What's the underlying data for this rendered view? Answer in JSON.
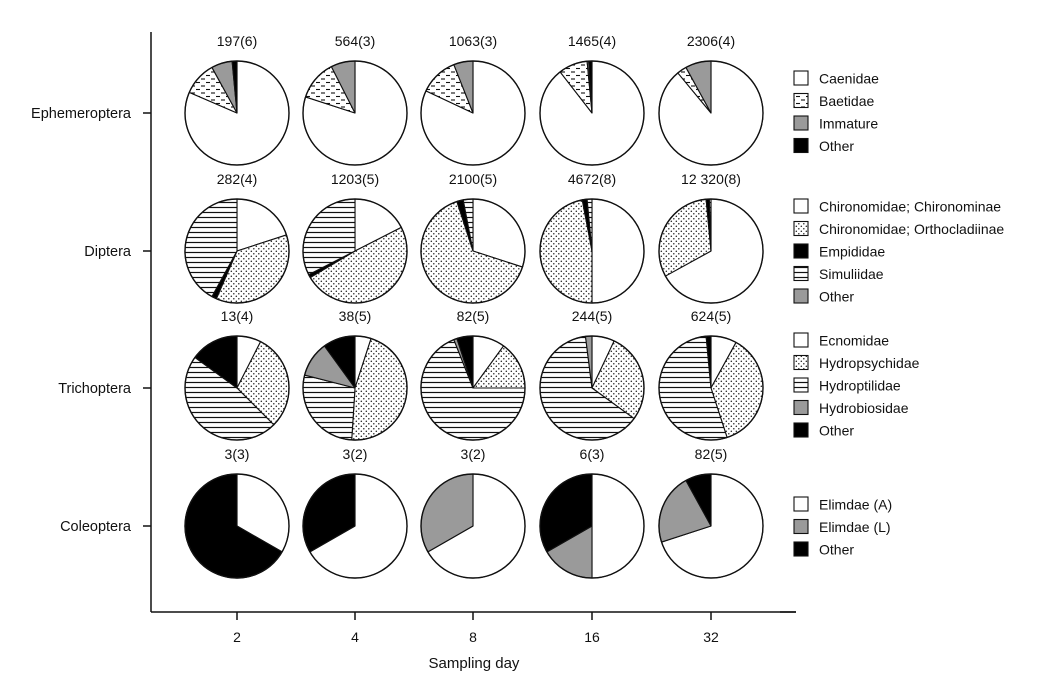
{
  "colors": {
    "black": "#000000",
    "gray": "#9a9a9a",
    "white": "#ffffff",
    "outline": "#111111"
  },
  "chart_data": {
    "type": "pie",
    "layout": "grid of pie charts (rows = insect orders, columns = sampling days)",
    "xlabel": "Sampling day",
    "x_ticks": [
      "2",
      "4",
      "8",
      "16",
      "32"
    ],
    "legend_placement": "right",
    "fills": {
      "white": "plain white",
      "gray": "solid gray",
      "black": "solid black",
      "dashes": "short horizontal dashes on white",
      "dots": "fine dot stipple on white",
      "hlines": "horizontal lines on white"
    },
    "rows": [
      {
        "order": "Ephemeroptera",
        "categories": [
          {
            "name": "Caenidae",
            "fill": "white"
          },
          {
            "name": "Baetidae",
            "fill": "dashes"
          },
          {
            "name": "Immature",
            "fill": "gray"
          },
          {
            "name": "Other",
            "fill": "black"
          }
        ],
        "pies": [
          {
            "label": "197(6)",
            "values": [
              81.5,
              10.5,
              6.5,
              1.5
            ]
          },
          {
            "label": "564(3)",
            "values": [
              80,
              12.5,
              7.5,
              0
            ]
          },
          {
            "label": "1063(3)",
            "values": [
              82,
              12,
              6,
              0
            ]
          },
          {
            "label": "1465(4)",
            "values": [
              89.5,
              9,
              0.5,
              1
            ]
          },
          {
            "label": "2306(4)",
            "values": [
              89,
              3,
              8,
              0
            ]
          }
        ]
      },
      {
        "order": "Diptera",
        "categories": [
          {
            "name": "Chironomidae; Chironominae",
            "fill": "white"
          },
          {
            "name": "Chironomidae; Orthocladiinae",
            "fill": "dots"
          },
          {
            "name": "Empididae",
            "fill": "black"
          },
          {
            "name": "Simuliidae",
            "fill": "hlines"
          },
          {
            "name": "Other",
            "fill": "gray"
          }
        ],
        "pies": [
          {
            "label": "282(4)",
            "values": [
              20,
              36.5,
              1.5,
              42,
              0
            ]
          },
          {
            "label": "1203(5)",
            "values": [
              17.5,
              49,
              1,
              32.5,
              0
            ]
          },
          {
            "label": "2100(5)",
            "values": [
              30,
              65,
              2,
              3,
              0
            ]
          },
          {
            "label": "4672(8)",
            "values": [
              50,
              47,
              1.5,
              1.5,
              0
            ]
          },
          {
            "label": "12 320(8)",
            "values": [
              67,
              31.5,
              1,
              0.5,
              0
            ]
          }
        ]
      },
      {
        "order": "Trichoptera",
        "categories": [
          {
            "name": "Ecnomidae",
            "fill": "white"
          },
          {
            "name": "Hydropsychidae",
            "fill": "dots"
          },
          {
            "name": "Hydroptilidae",
            "fill": "hlines"
          },
          {
            "name": "Hydrobiosidae",
            "fill": "gray"
          },
          {
            "name": "Other",
            "fill": "black"
          }
        ],
        "pies": [
          {
            "label": "13(4)",
            "values": [
              7.5,
              30,
              47.5,
              0,
              15
            ]
          },
          {
            "label": "38(5)",
            "values": [
              5,
              46,
              28,
              11,
              10
            ]
          },
          {
            "label": "82(5)",
            "values": [
              10,
              15,
              69,
              1,
              5
            ]
          },
          {
            "label": "244(5)",
            "values": [
              7,
              28,
              63,
              2,
              0
            ]
          },
          {
            "label": "624(5)",
            "values": [
              8,
              37,
              53.5,
              0,
              1.5
            ]
          }
        ]
      },
      {
        "order": "Coleoptera",
        "categories": [
          {
            "name": "Elimdae (A)",
            "fill": "white"
          },
          {
            "name": "Elimdae (L)",
            "fill": "gray"
          },
          {
            "name": "Other",
            "fill": "black"
          }
        ],
        "pies": [
          {
            "label": "3(3)",
            "values": [
              33.3,
              0,
              66.7
            ]
          },
          {
            "label": "3(2)",
            "values": [
              66.7,
              0,
              33.3
            ]
          },
          {
            "label": "3(2)",
            "values": [
              66.7,
              33.3,
              0
            ]
          },
          {
            "label": "6(3)",
            "values": [
              50,
              16.7,
              33.3
            ]
          },
          {
            "label": "82(5)",
            "values": [
              70,
              22,
              8
            ]
          }
        ]
      }
    ]
  }
}
